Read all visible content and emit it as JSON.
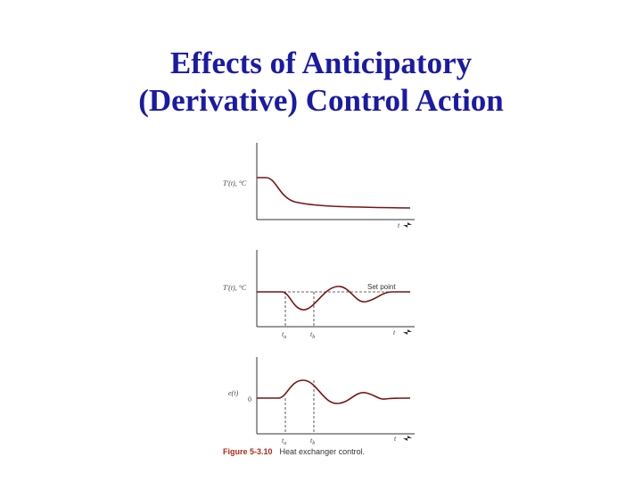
{
  "slide": {
    "title_line1": "Effects of Anticipatory",
    "title_line2": "(Derivative) Control Action"
  },
  "figure": {
    "panel1": {
      "ylabel": "T'(t), °C",
      "xlabel": "t"
    },
    "panel2": {
      "ylabel": "T'(t), °C",
      "xlabel": "t",
      "setpoint_label": "Set point",
      "t_a": "t",
      "t_a_sub": "a",
      "t_b": "t",
      "t_b_sub": "b"
    },
    "panel3": {
      "ylabel": "e(t)",
      "zero_label": "0",
      "xlabel": "t",
      "t_a": "t",
      "t_a_sub": "a",
      "t_b": "t",
      "t_b_sub": "b"
    },
    "caption_number": "Figure 5-3.10",
    "caption_text": "Heat exchanger control."
  },
  "colors": {
    "title": "#1a1aa6",
    "caption_number": "#b02a1a",
    "curve": "#7a1414"
  }
}
